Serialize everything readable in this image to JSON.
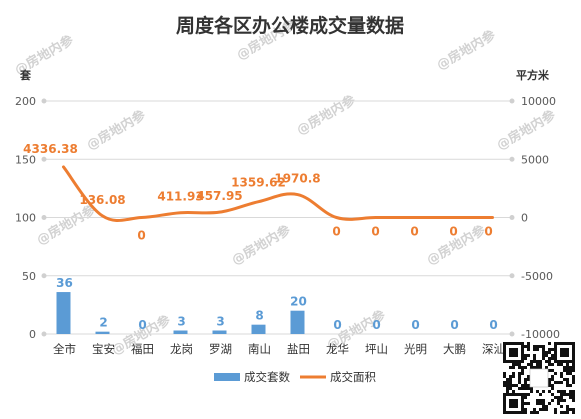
{
  "chart_data": {
    "type": "bar+line",
    "title": "周度各区办公楼成交量数据",
    "categories": [
      "全市",
      "宝安",
      "福田",
      "龙岗",
      "罗湖",
      "南山",
      "盐田",
      "龙华",
      "坪山",
      "光明",
      "大鹏",
      "深汕"
    ],
    "series": [
      {
        "name": "成交套数",
        "type": "bar",
        "axis": "left",
        "color": "#5B9BD5",
        "values": [
          36,
          2,
          0,
          3,
          3,
          8,
          20,
          0,
          0,
          0,
          0,
          0
        ],
        "labels": [
          "36",
          "2",
          "0",
          "3",
          "3",
          "8",
          "20",
          "0",
          "0",
          "0",
          "0",
          "0"
        ]
      },
      {
        "name": "成交面积",
        "type": "line",
        "axis": "right",
        "color": "#ED7D31",
        "values": [
          4336.38,
          136.08,
          0,
          411.93,
          457.95,
          1359.62,
          1970.8,
          0,
          0,
          0,
          0,
          0
        ],
        "labels": [
          "4336.38",
          "136.08",
          "0",
          "411.93",
          "457.95",
          "1359.62",
          "1970.8",
          "0",
          "0",
          "0",
          "0",
          "0"
        ]
      }
    ],
    "y_left": {
      "unit": "套",
      "min": 0,
      "max": 200,
      "ticks": [
        "0",
        "50",
        "100",
        "150",
        "200"
      ]
    },
    "y_right": {
      "unit": "平方米",
      "min": -10000,
      "max": 10000,
      "ticks": [
        "-10000",
        "-5000",
        "0",
        "5000",
        "10000"
      ]
    },
    "legend": {
      "placement": "bottom"
    },
    "grid": true
  },
  "watermark": "@房地内参"
}
